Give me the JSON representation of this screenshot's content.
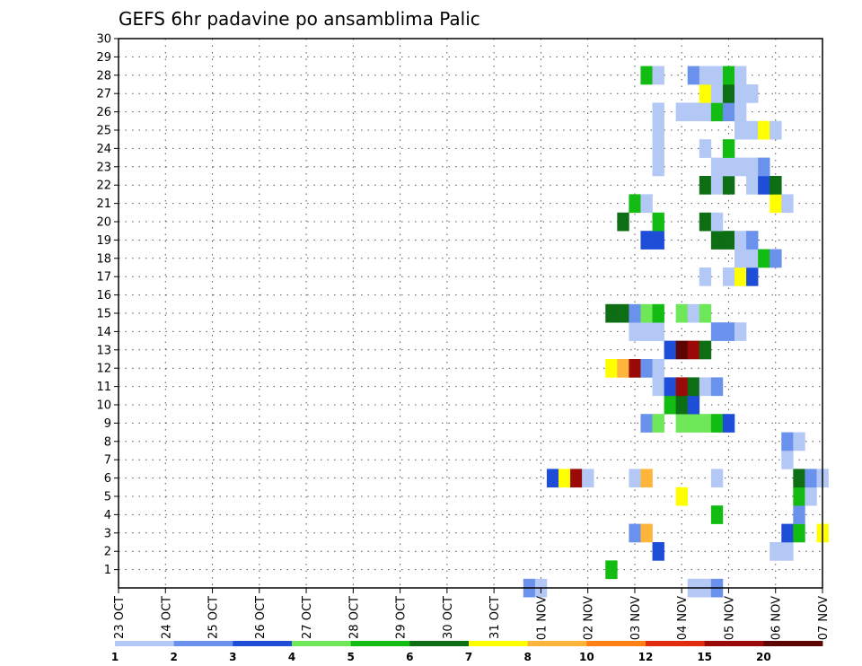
{
  "chart_data": {
    "type": "heatmap",
    "title": "GEFS 6hr padavine po ansamblima Palic",
    "xlabel": "",
    "ylabel": "",
    "x_ticks": [
      "23 OCT",
      "24 OCT",
      "25 OCT",
      "26 OCT",
      "27 OCT",
      "28 OCT",
      "29 OCT",
      "30 OCT",
      "31 OCT",
      "01 NOV",
      "02 NOV",
      "03 NOV",
      "04 NOV",
      "05 NOV",
      "06 NOV",
      "07 NOV"
    ],
    "y_ticks": [
      "1",
      "2",
      "3",
      "4",
      "5",
      "6",
      "7",
      "8",
      "9",
      "10",
      "11",
      "12",
      "13",
      "14",
      "15",
      "16",
      "17",
      "18",
      "19",
      "20",
      "21",
      "22",
      "23",
      "24",
      "25",
      "26",
      "27",
      "28",
      "29",
      "30"
    ],
    "x_range_days": [
      0,
      15
    ],
    "y_range": [
      0,
      30
    ],
    "grid": true,
    "colorbar": {
      "labels": [
        "1",
        "2",
        "3",
        "4",
        "5",
        "6",
        "7",
        "8",
        "10",
        "12",
        "15",
        "20"
      ],
      "colors": [
        "#b4c8f5",
        "#6a91ec",
        "#1e4ed8",
        "#6ee858",
        "#12bc12",
        "#0d6e14",
        "#ffff00",
        "#ffb43c",
        "#ff8014",
        "#e02e0c",
        "#9a0a08",
        "#5c0504"
      ]
    },
    "cells": [
      [
        8.75,
        0,
        1
      ],
      [
        9.0,
        0,
        0
      ],
      [
        12.25,
        0,
        0
      ],
      [
        12.5,
        0,
        0
      ],
      [
        12.75,
        0,
        1
      ],
      [
        11.5,
        2,
        2
      ],
      [
        14.0,
        2,
        0
      ],
      [
        14.25,
        2,
        0
      ],
      [
        10.5,
        1,
        4
      ],
      [
        11.0,
        3,
        1
      ],
      [
        11.25,
        3,
        7
      ],
      [
        14.25,
        3,
        2
      ],
      [
        14.5,
        3,
        4
      ],
      [
        15.0,
        3,
        6
      ],
      [
        12.75,
        4,
        4
      ],
      [
        14.5,
        4,
        1
      ],
      [
        14.5,
        5,
        4
      ],
      [
        14.75,
        5,
        0
      ],
      [
        12.0,
        5,
        6
      ],
      [
        11.0,
        6,
        0
      ],
      [
        11.25,
        6,
        7
      ],
      [
        12.75,
        6,
        0
      ],
      [
        14.5,
        6,
        5
      ],
      [
        14.75,
        6,
        1
      ],
      [
        15.0,
        6,
        0
      ],
      [
        9.25,
        6,
        2
      ],
      [
        9.5,
        6,
        6
      ],
      [
        9.75,
        6,
        10
      ],
      [
        10.0,
        6,
        0
      ],
      [
        14.25,
        7,
        0
      ],
      [
        14.25,
        8,
        1
      ],
      [
        14.5,
        8,
        0
      ],
      [
        11.25,
        9,
        1
      ],
      [
        11.5,
        9,
        3
      ],
      [
        12.0,
        9,
        3
      ],
      [
        12.25,
        9,
        3
      ],
      [
        12.5,
        9,
        3
      ],
      [
        12.75,
        9,
        4
      ],
      [
        13.0,
        9,
        2
      ],
      [
        11.75,
        10,
        4
      ],
      [
        12.0,
        10,
        5
      ],
      [
        12.25,
        10,
        2
      ],
      [
        11.5,
        11,
        0
      ],
      [
        11.75,
        11,
        2
      ],
      [
        12.0,
        11,
        10
      ],
      [
        12.25,
        11,
        5
      ],
      [
        12.5,
        11,
        0
      ],
      [
        12.75,
        11,
        1
      ],
      [
        10.5,
        12,
        6
      ],
      [
        10.75,
        12,
        7
      ],
      [
        11.0,
        12,
        10
      ],
      [
        11.25,
        12,
        1
      ],
      [
        11.5,
        12,
        0
      ],
      [
        11.75,
        13,
        2
      ],
      [
        12.0,
        13,
        11
      ],
      [
        12.25,
        13,
        10
      ],
      [
        12.5,
        13,
        5
      ],
      [
        11.0,
        14,
        0
      ],
      [
        11.25,
        14,
        0
      ],
      [
        11.5,
        14,
        0
      ],
      [
        12.75,
        14,
        1
      ],
      [
        13.0,
        14,
        1
      ],
      [
        13.25,
        14,
        0
      ],
      [
        10.5,
        15,
        5
      ],
      [
        10.75,
        15,
        5
      ],
      [
        11.0,
        15,
        1
      ],
      [
        11.25,
        15,
        3
      ],
      [
        11.5,
        15,
        4
      ],
      [
        12.0,
        15,
        3
      ],
      [
        12.25,
        15,
        0
      ],
      [
        12.5,
        15,
        3
      ],
      [
        12.5,
        17,
        0
      ],
      [
        13.0,
        17,
        0
      ],
      [
        13.25,
        17,
        6
      ],
      [
        13.5,
        17,
        2
      ],
      [
        13.25,
        18,
        0
      ],
      [
        13.5,
        18,
        0
      ],
      [
        13.75,
        18,
        4
      ],
      [
        14.0,
        18,
        1
      ],
      [
        11.25,
        19,
        2
      ],
      [
        11.5,
        19,
        2
      ],
      [
        12.75,
        19,
        5
      ],
      [
        13.0,
        19,
        5
      ],
      [
        13.25,
        19,
        0
      ],
      [
        13.5,
        19,
        1
      ],
      [
        10.75,
        20,
        5
      ],
      [
        11.5,
        20,
        4
      ],
      [
        12.5,
        20,
        5
      ],
      [
        12.75,
        20,
        0
      ],
      [
        11.0,
        21,
        4
      ],
      [
        11.25,
        21,
        0
      ],
      [
        14.0,
        21,
        6
      ],
      [
        14.25,
        21,
        0
      ],
      [
        12.5,
        22,
        5
      ],
      [
        12.75,
        22,
        0
      ],
      [
        13.0,
        22,
        5
      ],
      [
        13.5,
        22,
        0
      ],
      [
        13.75,
        22,
        2
      ],
      [
        14.0,
        22,
        5
      ],
      [
        11.5,
        23,
        0
      ],
      [
        12.75,
        23,
        0
      ],
      [
        13.0,
        23,
        0
      ],
      [
        13.25,
        23,
        0
      ],
      [
        13.5,
        23,
        0
      ],
      [
        13.75,
        23,
        1
      ],
      [
        11.5,
        24,
        0
      ],
      [
        12.5,
        24,
        0
      ],
      [
        13.0,
        24,
        4
      ],
      [
        11.5,
        25,
        0
      ],
      [
        13.25,
        25,
        0
      ],
      [
        13.5,
        25,
        0
      ],
      [
        13.75,
        25,
        6
      ],
      [
        14.0,
        25,
        0
      ],
      [
        11.5,
        26,
        0
      ],
      [
        12.0,
        26,
        0
      ],
      [
        12.25,
        26,
        0
      ],
      [
        12.5,
        26,
        0
      ],
      [
        12.75,
        26,
        4
      ],
      [
        13.0,
        26,
        1
      ],
      [
        13.25,
        26,
        0
      ],
      [
        12.5,
        27,
        6
      ],
      [
        12.75,
        27,
        0
      ],
      [
        13.0,
        27,
        5
      ],
      [
        13.25,
        27,
        0
      ],
      [
        13.5,
        27,
        0
      ],
      [
        11.25,
        28,
        4
      ],
      [
        11.5,
        28,
        0
      ],
      [
        12.25,
        28,
        1
      ],
      [
        12.5,
        28,
        0
      ],
      [
        12.75,
        28,
        0
      ],
      [
        13.0,
        28,
        4
      ],
      [
        13.25,
        28,
        0
      ]
    ]
  }
}
